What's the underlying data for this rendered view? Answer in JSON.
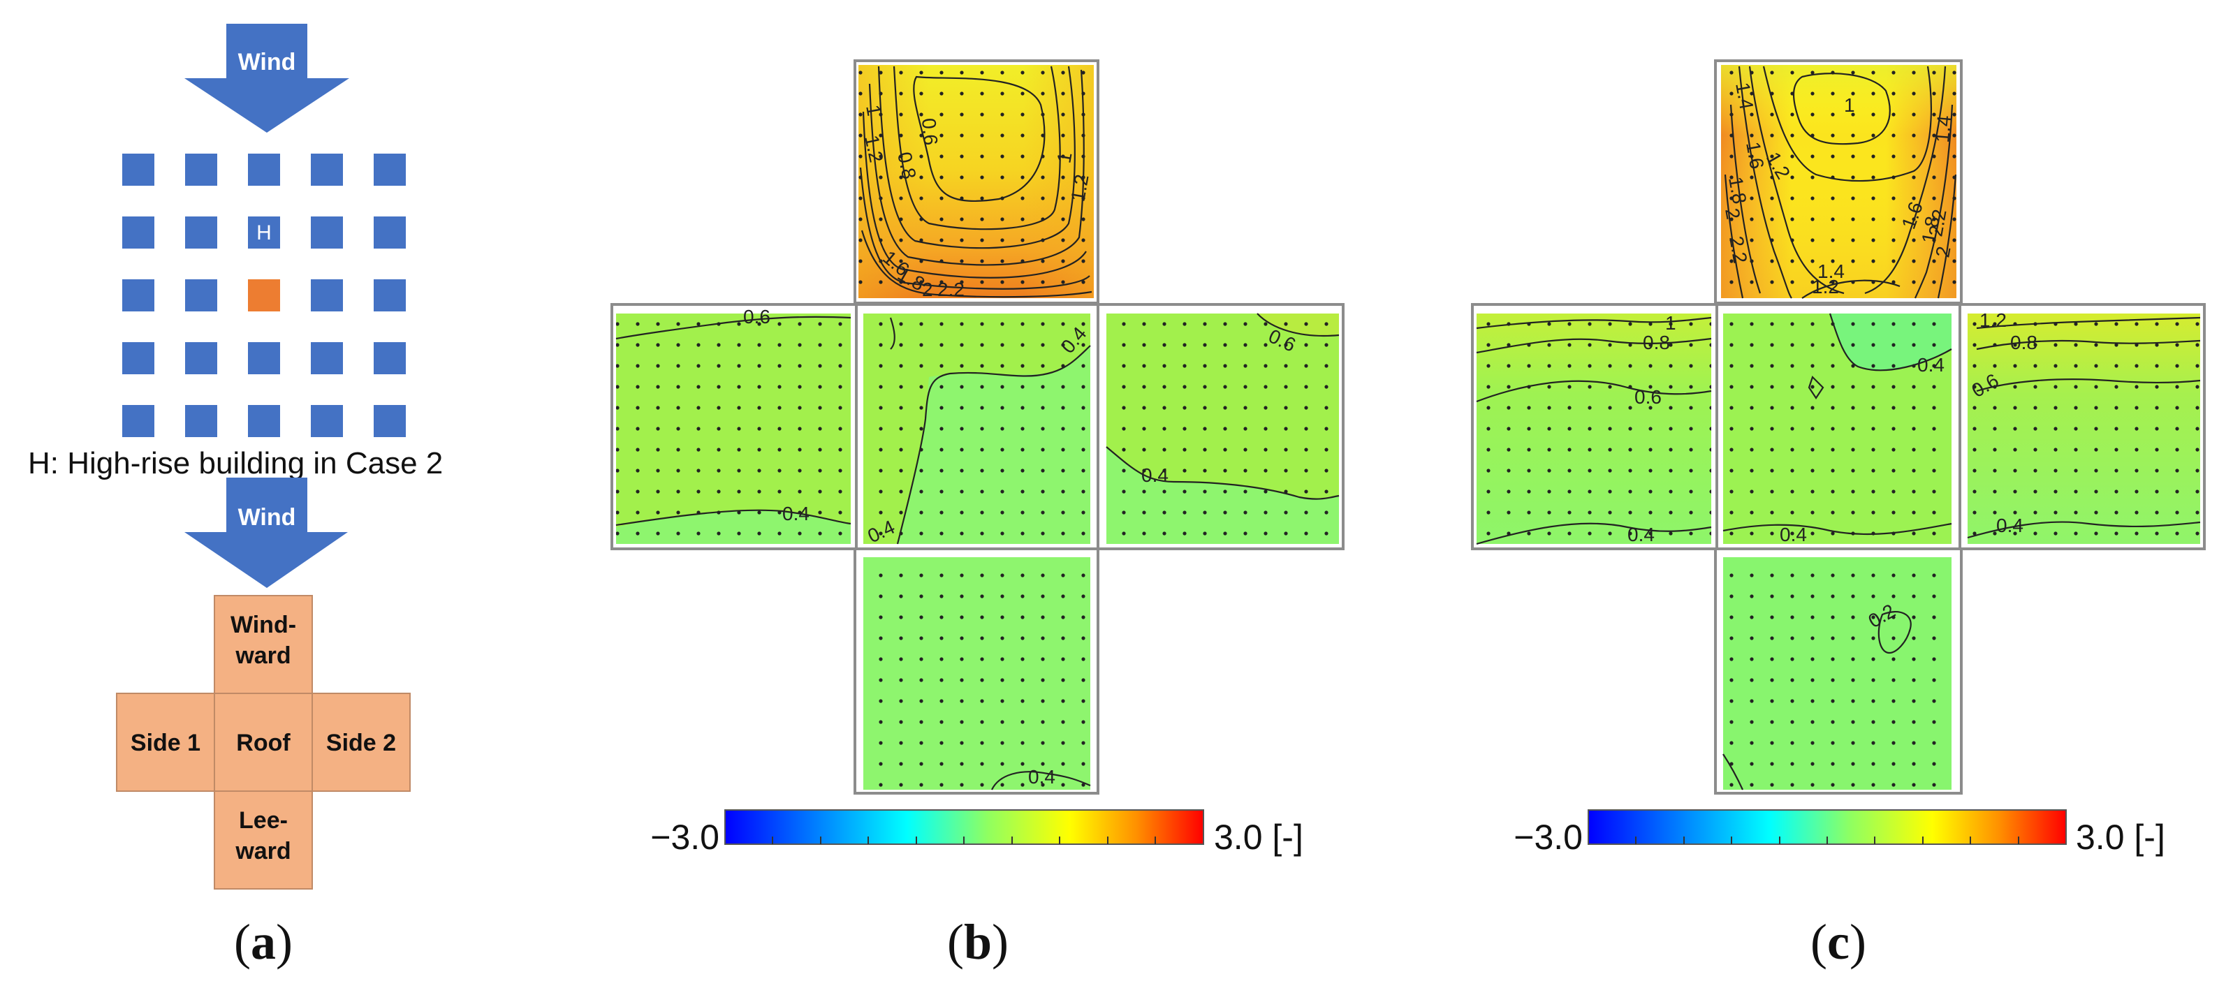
{
  "panel_a": {
    "wind_label": "Wind",
    "building_marker": "H",
    "legend_text": "H: High-rise building in Case 2",
    "wind_label_2": "Wind",
    "faces": {
      "windward": [
        "Wind-",
        "ward"
      ],
      "side1": "Side 1",
      "roof": "Roof",
      "side2": "Side 2",
      "leeward": [
        "Lee-",
        "ward"
      ]
    },
    "caption": "(a)",
    "caption_letter": "a",
    "colors": {
      "building": "#4472c4",
      "target": "#ed7d31",
      "face_fill": "#f4b183",
      "arrow": "#4472c4"
    }
  },
  "panel_b": {
    "caption": "(b)",
    "caption_letter": "b",
    "contour_labels": {
      "windward": [
        "1",
        "1.2",
        "0.8",
        "0.6",
        "1",
        "1.2",
        "1.6",
        "1.8",
        "2",
        "2.2"
      ],
      "side1": [
        "0.6",
        "0.4"
      ],
      "roof": [
        "0.4",
        "0.4"
      ],
      "side2": [
        "0.6",
        "0.4"
      ],
      "leeward": [
        "0.4"
      ]
    },
    "colorbar": {
      "min_label": "−3.0",
      "max_label": "3.0 [-]"
    }
  },
  "panel_c": {
    "caption": "(c)",
    "caption_letter": "c",
    "contour_labels": {
      "windward": [
        "1.4",
        "1",
        "1.4",
        "1.2",
        "1.6",
        "1.8",
        "2",
        "2.2",
        "1.4",
        "1.2",
        "1.6",
        "1.8",
        "2",
        "2.2"
      ],
      "side1": [
        "1",
        "0.8",
        "0.6",
        "0.4"
      ],
      "roof": [
        "0.4",
        "0.4"
      ],
      "side2": [
        "1.2",
        "0.8",
        "0.6",
        "0.4"
      ],
      "leeward": [
        "0.2"
      ]
    },
    "colorbar": {
      "min_label": "−3.0",
      "max_label": "3.0 [-]"
    }
  },
  "colormap": [
    "#0000ff",
    "#00c0ff",
    "#00ffff",
    "#80ff80",
    "#ffff00",
    "#ff8000",
    "#ff0000"
  ]
}
